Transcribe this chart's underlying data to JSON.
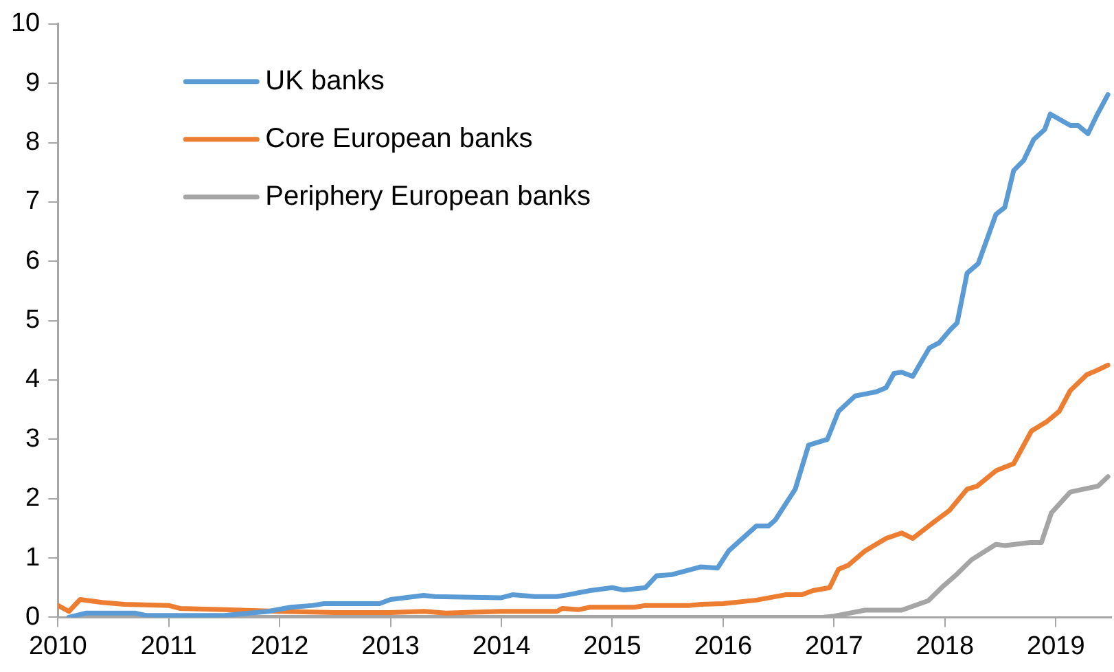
{
  "chart_data": {
    "type": "line",
    "xlim": [
      2010,
      2019.5
    ],
    "xticks": [
      2010,
      2011,
      2012,
      2013,
      2014,
      2015,
      2016,
      2017,
      2018,
      2019
    ],
    "ylim": [
      0,
      10
    ],
    "yticks": [
      0,
      1,
      2,
      3,
      4,
      5,
      6,
      7,
      8,
      9,
      10
    ],
    "grid": false,
    "legend": "top left",
    "marker": "none",
    "line_style": "solid",
    "series": [
      {
        "name": "UK banks",
        "color": "#5b9bd5",
        "x": [
          2010.1,
          2010.25,
          2010.7,
          2010.8,
          2011.5,
          2011.9,
          2012.1,
          2012.3,
          2012.4,
          2012.9,
          2013.0,
          2013.3,
          2013.4,
          2014.0,
          2014.1,
          2014.3,
          2014.5,
          2014.6,
          2014.8,
          2015.0,
          2015.1,
          2015.3,
          2015.4,
          2015.54,
          2015.8,
          2015.95,
          2016.05,
          2016.3,
          2016.41,
          2016.47,
          2016.65,
          2016.77,
          2016.94,
          2017.04,
          2017.19,
          2017.38,
          2017.47,
          2017.54,
          2017.61,
          2017.71,
          2017.86,
          2017.95,
          2018.05,
          2018.11,
          2018.2,
          2018.3,
          2018.46,
          2018.54,
          2018.62,
          2018.71,
          2018.8,
          2018.9,
          2018.95,
          2019.13,
          2019.2,
          2019.29,
          2019.37,
          2019.47
        ],
        "values": [
          0,
          0.07,
          0.07,
          0.03,
          0.03,
          0.1,
          0.17,
          0.2,
          0.23,
          0.23,
          0.3,
          0.37,
          0.35,
          0.33,
          0.38,
          0.35,
          0.35,
          0.38,
          0.45,
          0.5,
          0.46,
          0.5,
          0.7,
          0.72,
          0.85,
          0.83,
          1.12,
          1.54,
          1.54,
          1.64,
          2.16,
          2.9,
          3.0,
          3.47,
          3.73,
          3.8,
          3.87,
          4.11,
          4.13,
          4.06,
          4.54,
          4.63,
          4.85,
          4.96,
          5.8,
          5.96,
          6.79,
          6.91,
          7.53,
          7.7,
          8.05,
          8.22,
          8.48,
          8.29,
          8.29,
          8.15,
          8.46,
          8.81
        ]
      },
      {
        "name": "Core European banks",
        "color": "#ed7d31",
        "x": [
          2010.0,
          2010.1,
          2010.2,
          2010.4,
          2010.6,
          2011.0,
          2011.1,
          2011.5,
          2012.0,
          2012.5,
          2013.0,
          2013.3,
          2013.5,
          2014.0,
          2014.5,
          2014.55,
          2014.7,
          2014.8,
          2015.2,
          2015.3,
          2015.7,
          2015.8,
          2016.0,
          2016.3,
          2016.56,
          2016.71,
          2016.81,
          2016.96,
          2017.04,
          2017.13,
          2017.28,
          2017.47,
          2017.61,
          2017.71,
          2017.89,
          2018.04,
          2018.2,
          2018.29,
          2018.46,
          2018.62,
          2018.78,
          2018.92,
          2019.03,
          2019.13,
          2019.28,
          2019.37,
          2019.47
        ],
        "values": [
          0.2,
          0.1,
          0.3,
          0.25,
          0.22,
          0.2,
          0.15,
          0.13,
          0.1,
          0.08,
          0.08,
          0.1,
          0.07,
          0.1,
          0.1,
          0.15,
          0.13,
          0.17,
          0.17,
          0.2,
          0.2,
          0.22,
          0.23,
          0.29,
          0.38,
          0.38,
          0.45,
          0.5,
          0.81,
          0.88,
          1.12,
          1.33,
          1.42,
          1.33,
          1.59,
          1.8,
          2.16,
          2.21,
          2.47,
          2.59,
          3.14,
          3.3,
          3.47,
          3.82,
          4.09,
          4.16,
          4.25
        ]
      },
      {
        "name": "Periphery European banks",
        "color": "#a5a5a5",
        "x": [
          2010.1,
          2016.9,
          2017.0,
          2017.28,
          2017.61,
          2017.85,
          2017.97,
          2018.11,
          2018.24,
          2018.46,
          2018.54,
          2018.77,
          2018.87,
          2018.96,
          2019.13,
          2019.25,
          2019.38,
          2019.47
        ],
        "values": [
          0,
          0,
          0.02,
          0.12,
          0.12,
          0.28,
          0.5,
          0.73,
          0.97,
          1.23,
          1.21,
          1.26,
          1.26,
          1.76,
          2.11,
          2.16,
          2.21,
          2.37
        ]
      }
    ]
  }
}
